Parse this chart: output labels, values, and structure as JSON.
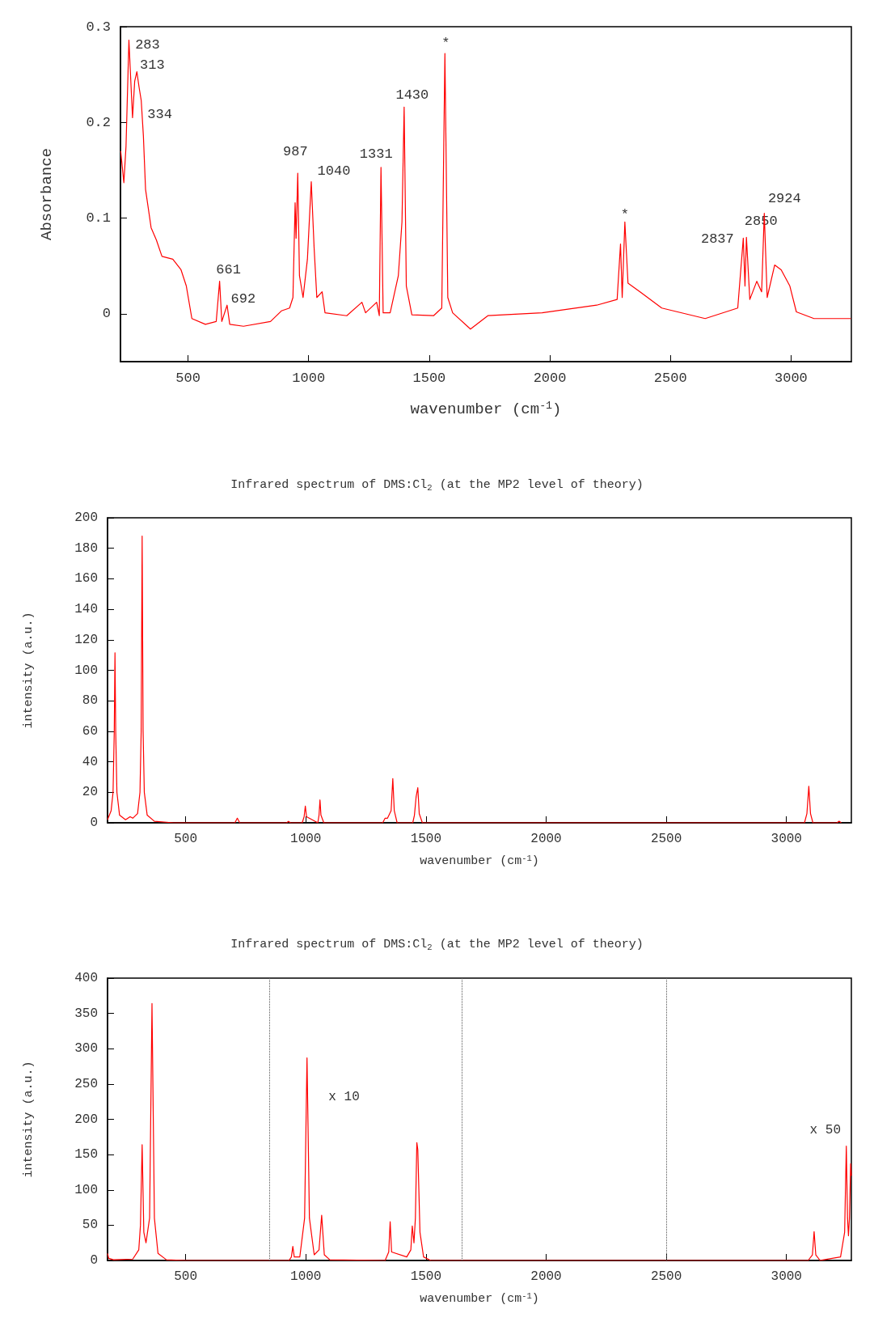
{
  "chart_data": [
    {
      "type": "line",
      "xlabel": "wavenumber (cm$^{-1}$)",
      "ylabel": "Absorbance",
      "xlim": [
        220,
        3250
      ],
      "ylim": [
        -0.05,
        0.3
      ],
      "xticks": [
        500,
        1000,
        1500,
        2000,
        2500,
        3000
      ],
      "yticks": [
        0,
        0.1,
        0.2,
        0.3
      ],
      "grid": false,
      "series": [
        {
          "color": "#ff0000",
          "x": [
            221,
            234,
            243,
            255,
            264,
            270,
            279,
            288,
            297,
            306,
            315,
            324,
            347,
            369,
            392,
            437,
            471,
            493,
            516,
            572,
            617,
            631,
            640,
            662,
            673,
            730,
            842,
            887,
            921,
            935,
            944,
            948,
            955,
            962,
            977,
            995,
            1011,
            1023,
            1034,
            1056,
            1068,
            1158,
            1221,
            1236,
            1282,
            1293,
            1300,
            1309,
            1338,
            1372,
            1387,
            1396,
            1405,
            1428,
            1518,
            1552,
            1565,
            1577,
            1597,
            1671,
            1743,
            1968,
            2194,
            2279,
            2293,
            2300,
            2311,
            2324,
            2374,
            2464,
            2644,
            2779,
            2802,
            2809,
            2815,
            2829,
            2858,
            2878,
            2889,
            2901,
            2932,
            2959,
            2995,
            3022,
            3095,
            3248
          ],
          "values": [
            0.17,
            0.137,
            0.175,
            0.286,
            0.237,
            0.205,
            0.243,
            0.253,
            0.237,
            0.223,
            0.186,
            0.13,
            0.09,
            0.077,
            0.06,
            0.057,
            0.046,
            0.029,
            -0.005,
            -0.011,
            -0.008,
            0.034,
            -0.008,
            0.009,
            -0.011,
            -0.013,
            -0.008,
            0.003,
            0.006,
            0.017,
            0.116,
            0.079,
            0.147,
            0.04,
            0.017,
            0.057,
            0.138,
            0.068,
            0.017,
            0.023,
            0.001,
            -0.002,
            0.012,
            0.001,
            0.012,
            -0.002,
            0.153,
            0.001,
            0.001,
            0.04,
            0.096,
            0.216,
            0.029,
            -0.001,
            -0.002,
            0.006,
            0.272,
            0.017,
            0.001,
            -0.016,
            -0.002,
            0.001,
            0.009,
            0.015,
            0.073,
            0.017,
            0.096,
            0.032,
            0.023,
            0.006,
            -0.005,
            0.006,
            0.079,
            0.029,
            0.08,
            0.015,
            0.034,
            0.023,
            0.105,
            0.017,
            0.051,
            0.046,
            0.029,
            0.002,
            -0.005,
            -0.005
          ]
        }
      ],
      "annotations": [
        {
          "text": "283",
          "x": 255,
          "y": 0.286
        },
        {
          "text": "313",
          "x": 288,
          "y": 0.253
        },
        {
          "text": "334",
          "x": 306,
          "y": 0.223
        },
        {
          "text": "661",
          "x": 631,
          "y": 0.034
        },
        {
          "text": "692",
          "x": 662,
          "y": 0.009
        },
        {
          "text": "987",
          "x": 955,
          "y": 0.147
        },
        {
          "text": "1040",
          "x": 1011,
          "y": 0.138
        },
        {
          "text": "1331",
          "x": 1300,
          "y": 0.153
        },
        {
          "text": "1430",
          "x": 1396,
          "y": 0.216
        },
        {
          "text": "*",
          "x": 1565,
          "y": 0.272
        },
        {
          "text": "*",
          "x": 2311,
          "y": 0.096
        },
        {
          "text": "2837",
          "x": 2802,
          "y": 0.079
        },
        {
          "text": "2850",
          "x": 2815,
          "y": 0.08
        },
        {
          "text": "2924",
          "x": 2889,
          "y": 0.105
        }
      ]
    },
    {
      "type": "line",
      "title": "Infrared spectrum of DMS:Cl$_{2}$ (at the MP2 level of theory)",
      "xlabel": "wavenumber (cm$^{-1}$)",
      "ylabel": "intensity (a.u.)",
      "xlim": [
        175,
        3270
      ],
      "ylim": [
        0,
        200
      ],
      "xticks": [
        500,
        1000,
        1500,
        2000,
        2500,
        3000
      ],
      "yticks": [
        0,
        20,
        40,
        60,
        80,
        100,
        120,
        140,
        160,
        180,
        200
      ],
      "grid": false,
      "series": [
        {
          "color": "#ff0000",
          "x": [
            175,
            190,
            198,
            203,
            206,
            209,
            214,
            225,
            250,
            269,
            280,
            300,
            310,
            315,
            319,
            323,
            328,
            340,
            370,
            450,
            705,
            715,
            725,
            920,
            928,
            936,
            985,
            993,
            998,
            1003,
            1050,
            1055,
            1059,
            1063,
            1075,
            1320,
            1330,
            1340,
            1355,
            1362,
            1368,
            1380,
            1445,
            1452,
            1459,
            1466,
            1472,
            1485,
            3075,
            3085,
            3093,
            3100,
            3110,
            3210,
            3219,
            3228
          ],
          "values": [
            2,
            8,
            20,
            60,
            111.5,
            60,
            20,
            5,
            2,
            4,
            3,
            6,
            20,
            60,
            188,
            60,
            20,
            5,
            1,
            0,
            0,
            3,
            0,
            0,
            1,
            0,
            0,
            4,
            11,
            4,
            0,
            5,
            15,
            5,
            0,
            0,
            3,
            3,
            8,
            29,
            8,
            0,
            0,
            5,
            17,
            23,
            6,
            0,
            0,
            6,
            24,
            6,
            0,
            0,
            1,
            0
          ]
        }
      ]
    },
    {
      "type": "line",
      "title": "Infrared spectrum of DMS:Cl$_{2}$ (at the MP2 level of theory)",
      "xlabel": "wavenumber (cm$^{-1}$)",
      "ylabel": "intensity (a.u.)",
      "xlim": [
        175,
        3270
      ],
      "ylim": [
        0,
        400
      ],
      "xticks": [
        500,
        1000,
        1500,
        2000,
        2500,
        3000
      ],
      "yticks": [
        0,
        50,
        100,
        150,
        200,
        250,
        300,
        350,
        400
      ],
      "grid": false,
      "series": [
        {
          "color": "#ff0000",
          "x": [
            175,
            180,
            200,
            280,
            305,
            312,
            319,
            326,
            335,
            350,
            360,
            370,
            385,
            420,
            500,
            930,
            940,
            946,
            952,
            975,
            995,
            1005,
            1015,
            1035,
            1055,
            1066,
            1077,
            1100,
            1330,
            1345,
            1351,
            1357,
            1420,
            1437,
            1443,
            1450,
            1456,
            1462,
            1466,
            1475,
            1490,
            1520,
            3090,
            3108,
            3115,
            3122,
            3140,
            3225,
            3242,
            3249,
            3254,
            3258,
            3262,
            3267,
            3270
          ],
          "values": [
            10,
            3,
            1,
            2,
            15,
            50,
            164,
            40,
            25,
            60,
            364,
            60,
            10,
            1,
            0,
            0,
            5,
            20,
            5,
            5,
            60,
            287,
            60,
            8,
            15,
            64,
            8,
            1,
            0,
            12,
            55,
            12,
            5,
            15,
            49,
            25,
            60,
            167,
            157,
            40,
            5,
            0,
            0,
            8,
            41,
            8,
            0,
            5,
            40,
            162,
            60,
            35,
            60,
            137,
            120
          ]
        }
      ],
      "ref_lines": [
        {
          "axis": "x",
          "value": 850,
          "color": "#555555",
          "line_style": "dotted"
        },
        {
          "axis": "x",
          "value": 1650,
          "color": "#555555",
          "line_style": "dotted"
        },
        {
          "axis": "x",
          "value": 2500,
          "color": "#555555",
          "line_style": "dotted"
        }
      ],
      "annotations": [
        "x 10",
        "x 50"
      ]
    }
  ]
}
